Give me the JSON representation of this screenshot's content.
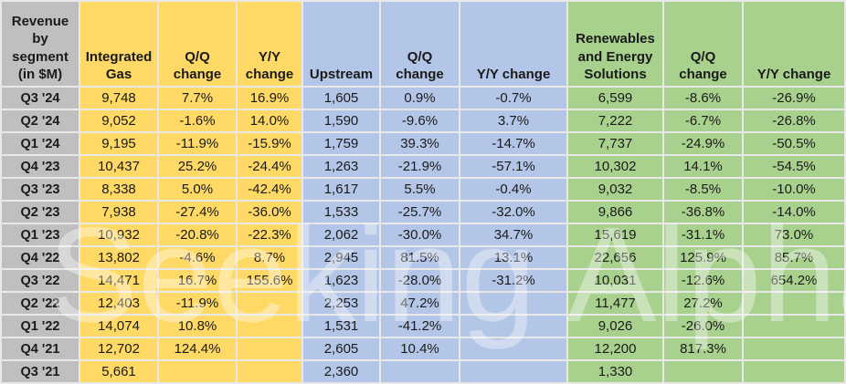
{
  "chart_data": {
    "type": "table",
    "title": "Revenue by segment (in $M)",
    "corner_header": "Revenue\nby\nsegment\n(in $M)",
    "headers": {
      "integrated_gas": "Integrated Gas",
      "ig_qq": "Q/Q change",
      "ig_yy": "Y/Y change",
      "upstream": "Upstream",
      "up_qq": "Q/Q change",
      "up_yy": "Y/Y change",
      "renewables": "Renewables and Energy Solutions",
      "ren_qq": "Q/Q change",
      "ren_yy": "Y/Y change"
    },
    "column_groups": [
      {
        "segment": "Integrated Gas",
        "color": "#FFD966"
      },
      {
        "segment": "Upstream",
        "color": "#B4C6E7"
      },
      {
        "segment": "Renewables and Energy Solutions",
        "color": "#A9D18E"
      }
    ],
    "rows": [
      {
        "label": "Q3 '24",
        "cells": [
          "9,748",
          "7.7%",
          "16.9%",
          "1,605",
          "0.9%",
          "-0.7%",
          "6,599",
          "-8.6%",
          "-26.9%"
        ]
      },
      {
        "label": "Q2 '24",
        "cells": [
          "9,052",
          "-1.6%",
          "14.0%",
          "1,590",
          "-9.6%",
          "3.7%",
          "7,222",
          "-6.7%",
          "-26.8%"
        ]
      },
      {
        "label": "Q1 '24",
        "cells": [
          "9,195",
          "-11.9%",
          "-15.9%",
          "1,759",
          "39.3%",
          "-14.7%",
          "7,737",
          "-24.9%",
          "-50.5%"
        ]
      },
      {
        "label": "Q4 '23",
        "cells": [
          "10,437",
          "25.2%",
          "-24.4%",
          "1,263",
          "-21.9%",
          "-57.1%",
          "10,302",
          "14.1%",
          "-54.5%"
        ]
      },
      {
        "label": "Q3 '23",
        "cells": [
          "8,338",
          "5.0%",
          "-42.4%",
          "1,617",
          "5.5%",
          "-0.4%",
          "9,032",
          "-8.5%",
          "-10.0%"
        ]
      },
      {
        "label": "Q2 '23",
        "cells": [
          "7,938",
          "-27.4%",
          "-36.0%",
          "1,533",
          "-25.7%",
          "-32.0%",
          "9,866",
          "-36.8%",
          "-14.0%"
        ]
      },
      {
        "label": "Q1 '23",
        "cells": [
          "10,932",
          "-20.8%",
          "-22.3%",
          "2,062",
          "-30.0%",
          "34.7%",
          "15,619",
          "-31.1%",
          "73.0%"
        ]
      },
      {
        "label": "Q4 '22",
        "cells": [
          "13,802",
          "-4.6%",
          "8.7%",
          "2,945",
          "81.5%",
          "13.1%",
          "22,656",
          "125.9%",
          "85.7%"
        ]
      },
      {
        "label": "Q3 '22",
        "cells": [
          "14,471",
          "16.7%",
          "155.6%",
          "1,623",
          "-28.0%",
          "-31.2%",
          "10,031",
          "-12.6%",
          "654.2%"
        ]
      },
      {
        "label": "Q2 '22",
        "cells": [
          "12,403",
          "-11.9%",
          "",
          "2,253",
          "47.2%",
          "",
          "11,477",
          "27.2%",
          ""
        ]
      },
      {
        "label": "Q1 '22",
        "cells": [
          "14,074",
          "10.8%",
          "",
          "1,531",
          "-41.2%",
          "",
          "9,026",
          "-26.0%",
          ""
        ]
      },
      {
        "label": "Q4 '21",
        "cells": [
          "12,702",
          "124.4%",
          "",
          "2,605",
          "10.4%",
          "",
          "12,200",
          "817.3%",
          ""
        ]
      },
      {
        "label": "Q3 '21",
        "cells": [
          "5,661",
          "",
          "",
          "2,360",
          "",
          "",
          "1,330",
          "",
          ""
        ]
      }
    ],
    "colors": {
      "label_bg": "#BFBFBF",
      "gold": "#FFD966",
      "blue": "#B4C6E7",
      "green": "#A9D18E",
      "grid": "#E8E8E8",
      "text": "#1A1A1A"
    },
    "watermark": "Seeking Alpha"
  }
}
